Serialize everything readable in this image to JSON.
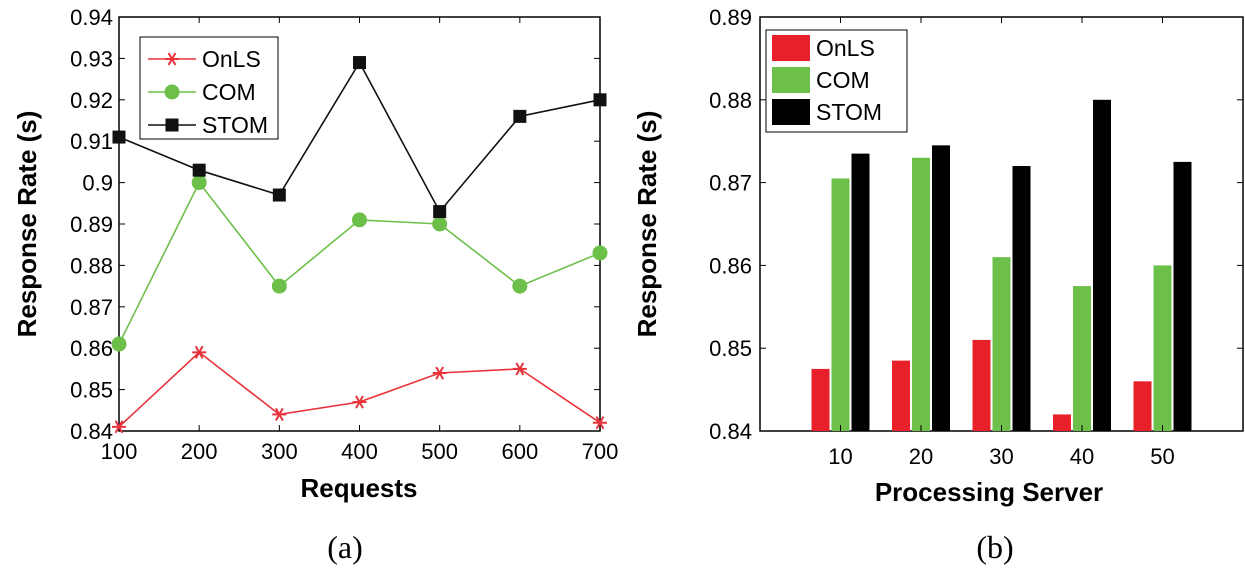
{
  "chart_data": [
    {
      "type": "line",
      "caption": "(a)",
      "xlabel": "Requests",
      "ylabel": "Response Rate (s)",
      "x": [
        100,
        200,
        300,
        400,
        500,
        600,
        700
      ],
      "xlim": [
        100,
        700
      ],
      "ylim": [
        0.84,
        0.94
      ],
      "yticks": [
        "0.84",
        "0.85",
        "0.86",
        "0.87",
        "0.88",
        "0.89",
        "0.9",
        "0.91",
        "0.92",
        "0.93",
        "0.94"
      ],
      "xticks": [
        "100",
        "200",
        "300",
        "400",
        "500",
        "600",
        "700"
      ],
      "grid": false,
      "legend_position": "top-left",
      "series": [
        {
          "name": "OnLS",
          "marker": "asterisk",
          "color": "#e8333a",
          "values": [
            0.841,
            0.859,
            0.844,
            0.847,
            0.854,
            0.855,
            0.842
          ]
        },
        {
          "name": "COM",
          "marker": "circle",
          "color": "#6cc04a",
          "values": [
            0.861,
            0.9,
            0.875,
            0.891,
            0.89,
            0.875,
            0.883
          ]
        },
        {
          "name": "STOM",
          "marker": "square",
          "color": "#111111",
          "values": [
            0.911,
            0.903,
            0.897,
            0.929,
            0.893,
            0.916,
            0.92
          ]
        }
      ]
    },
    {
      "type": "bar",
      "caption": "(b)",
      "xlabel": "Processing Server",
      "ylabel": "Response Rate (s)",
      "categories": [
        "10",
        "20",
        "30",
        "40",
        "50"
      ],
      "ylim": [
        0.84,
        0.89
      ],
      "yticks": [
        "0.84",
        "0.85",
        "0.86",
        "0.87",
        "0.88",
        "0.89"
      ],
      "grid": false,
      "legend_position": "top-left",
      "series": [
        {
          "name": "OnLS",
          "color": "#e8202a",
          "values": [
            0.8475,
            0.8485,
            0.851,
            0.842,
            0.846
          ]
        },
        {
          "name": "COM",
          "color": "#6cc04a",
          "values": [
            0.8705,
            0.873,
            0.861,
            0.8575,
            0.86
          ]
        },
        {
          "name": "STOM",
          "color": "#000000",
          "values": [
            0.8735,
            0.8745,
            0.872,
            0.88,
            0.8725
          ]
        }
      ]
    }
  ]
}
